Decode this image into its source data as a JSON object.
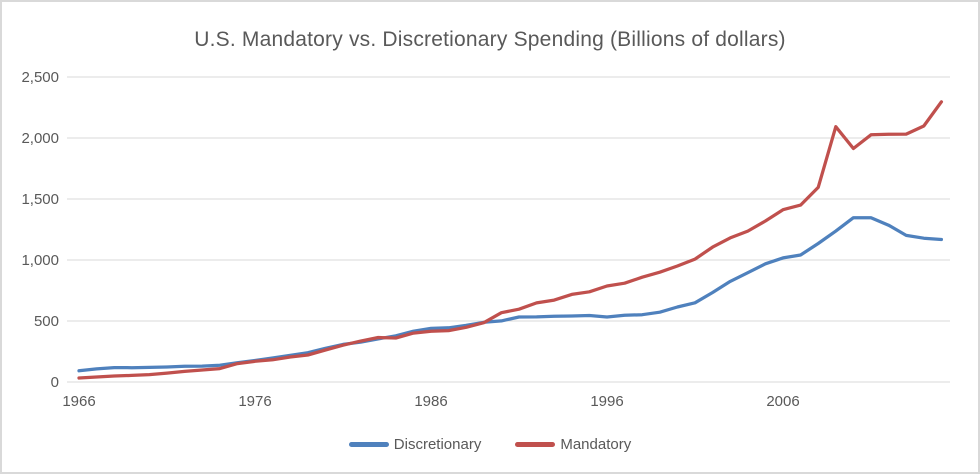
{
  "chart": {
    "title": "U.S. Mandatory vs. Discretionary Spending (Billions of dollars)"
  },
  "chart_data": {
    "type": "line",
    "title": "U.S. Mandatory vs. Discretionary Spending (Billions of dollars)",
    "xlabel": "",
    "ylabel": "",
    "x": [
      1966,
      1967,
      1968,
      1969,
      1970,
      1971,
      1972,
      1973,
      1974,
      1975,
      1976,
      1977,
      1978,
      1979,
      1980,
      1981,
      1982,
      1983,
      1984,
      1985,
      1986,
      1987,
      1988,
      1989,
      1990,
      1991,
      1992,
      1993,
      1994,
      1995,
      1996,
      1997,
      1998,
      1999,
      2000,
      2001,
      2002,
      2003,
      2004,
      2005,
      2006,
      2007,
      2008,
      2009,
      2010,
      2011,
      2012,
      2013,
      2014,
      2015
    ],
    "series": [
      {
        "name": "Discretionary",
        "color": "#4F81BD",
        "values": [
          92,
          107,
          118,
          117,
          120,
          123,
          129,
          130,
          138,
          158,
          176,
          197,
          219,
          240,
          276,
          308,
          326,
          353,
          379,
          416,
          439,
          444,
          464,
          489,
          501,
          533,
          534,
          539,
          541,
          545,
          533,
          547,
          552,
          572,
          615,
          649,
          734,
          825,
          896,
          969,
          1017,
          1041,
          1135,
          1237,
          1347,
          1347,
          1285,
          1202,
          1179,
          1168
        ]
      },
      {
        "name": "Mandatory",
        "color": "#C0504D",
        "values": [
          33,
          41,
          49,
          54,
          61,
          73,
          87,
          98,
          110,
          151,
          170,
          182,
          205,
          221,
          262,
          302,
          335,
          365,
          361,
          401,
          416,
          421,
          448,
          486,
          568,
          597,
          648,
          671,
          718,
          739,
          787,
          810,
          859,
          900,
          951,
          1007,
          1106,
          1181,
          1237,
          1320,
          1412,
          1450,
          1595,
          2093,
          1914,
          2026,
          2031,
          2032,
          2098,
          2297
        ]
      }
    ],
    "ylim": [
      0,
      2500
    ],
    "y_ticks": [
      0,
      500,
      1000,
      1500,
      2000,
      2500
    ],
    "y_tick_labels": [
      "0",
      "500",
      "1,000",
      "1,500",
      "2,000",
      "2,500"
    ],
    "x_tick_years": [
      1966,
      1976,
      1986,
      1996,
      2006
    ],
    "x_tick_labels": [
      "1966",
      "1976",
      "1986",
      "1996",
      "2006"
    ],
    "grid": true,
    "legend_position": "bottom"
  },
  "colors": {
    "gridline": "#D9D9D9",
    "axis_text": "#595959",
    "border": "#D9D9D9",
    "background": "#FFFFFF"
  }
}
